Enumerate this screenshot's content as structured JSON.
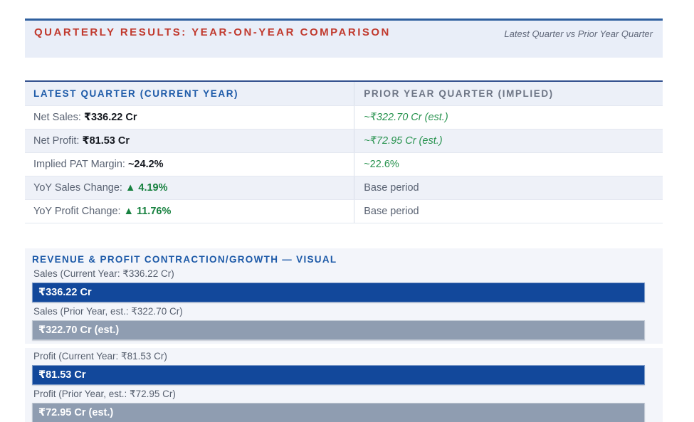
{
  "colors": {
    "accent_red": "#c13a2e",
    "accent_blue": "#1d5aa8",
    "bar_blue": "#12489b",
    "bar_gray": "#8f9db1",
    "green_value": "#28934f",
    "green_bold": "#17813f",
    "band_bg": "#e9eef8",
    "panel_bg": "#f3f5fa"
  },
  "header": {
    "title": "QUARTERLY RESULTS: YEAR-ON-YEAR COMPARISON",
    "subtitle": "Latest Quarter vs Prior Year Quarter"
  },
  "table": {
    "columns": {
      "current": "LATEST QUARTER (CURRENT YEAR)",
      "prior": "PRIOR YEAR QUARTER (IMPLIED)"
    },
    "rows": [
      {
        "label": "Net Sales:",
        "value": "₹336.22 Cr",
        "prior": "~₹322.70 Cr (est.)"
      },
      {
        "label": "Net Profit:",
        "value": "₹81.53 Cr",
        "prior": "~₹72.95 Cr (est.)"
      },
      {
        "label": "Implied PAT Margin:",
        "value": "~24.2%",
        "prior": "~22.6%"
      },
      {
        "label": "YoY Sales Change:",
        "value": "▲ 4.19%",
        "prior": "Base period"
      },
      {
        "label": "YoY Profit Change:",
        "value": "▲ 11.76%",
        "prior": "Base period"
      }
    ]
  },
  "visual": {
    "title": "REVENUE & PROFIT CONTRACTION/GROWTH — VISUAL",
    "bars": [
      {
        "label": "Sales (Current Year: ₹336.22 Cr)",
        "bar_text": "₹336.22 Cr",
        "color": "blue",
        "value_cr": 336.22
      },
      {
        "label": "Sales (Prior Year, est.: ₹322.70 Cr)",
        "bar_text": "₹322.70 Cr (est.)",
        "color": "gray",
        "value_cr": 322.7
      },
      {
        "label": "Profit (Current Year: ₹81.53 Cr)",
        "bar_text": "₹81.53 Cr",
        "color": "blue",
        "value_cr": 81.53
      },
      {
        "label": "Profit (Prior Year, est.: ₹72.95 Cr)",
        "bar_text": "₹72.95 Cr (est.)",
        "color": "gray",
        "value_cr": 72.95
      }
    ]
  },
  "chart_data": {
    "type": "bar",
    "orientation": "horizontal",
    "title": "REVENUE & PROFIT CONTRACTION/GROWTH — VISUAL",
    "categories": [
      "Sales (Current Year)",
      "Sales (Prior Year, est.)",
      "Profit (Current Year)",
      "Profit (Prior Year, est.)"
    ],
    "values": [
      336.22,
      322.7,
      81.53,
      72.95
    ],
    "unit": "₹ Cr",
    "data_labels": [
      "₹336.22 Cr",
      "₹322.70 Cr (est.)",
      "₹81.53 Cr",
      "₹72.95 Cr (est.)"
    ],
    "bar_colors": [
      "#12489b",
      "#8f9db1",
      "#12489b",
      "#8f9db1"
    ],
    "note": "All four bars are rendered at equal full-row width; values conveyed by labels, not bar length",
    "related_metrics": {
      "yoy_sales_change_pct": 4.19,
      "yoy_profit_change_pct": 11.76,
      "implied_pat_margin_current_pct": 24.2,
      "implied_pat_margin_prior_pct": 22.6
    }
  }
}
